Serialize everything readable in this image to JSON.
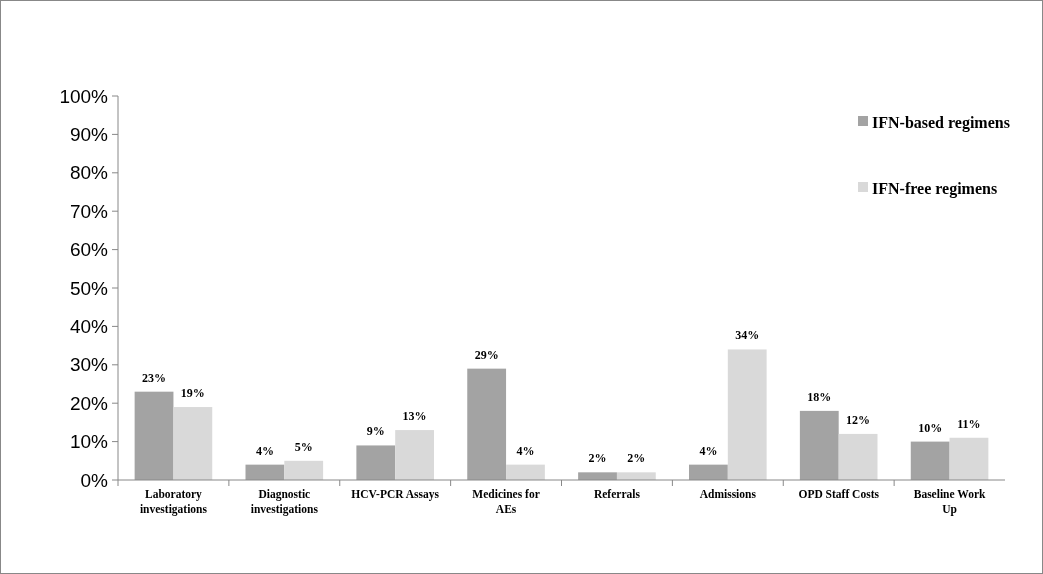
{
  "chart_data": {
    "type": "bar",
    "categories": [
      "Laboratory investigations",
      "Diagnostic investigations",
      "HCV-PCR Assays",
      "Medicines for AEs",
      "Referrals",
      "Admissions",
      "OPD Staff Costs",
      "Baseline Work Up"
    ],
    "series": [
      {
        "name": "IFN-based regimens",
        "color": "#a3a3a3",
        "values": [
          23,
          4,
          9,
          29,
          2,
          4,
          18,
          10
        ],
        "value_labels": [
          "23%",
          "4%",
          "9%",
          "29%",
          "2%",
          "4%",
          "18%",
          "10%"
        ]
      },
      {
        "name": "IFN-free regimens",
        "color": "#d9d9d9",
        "values": [
          19,
          5,
          13,
          4,
          2,
          34,
          12,
          11
        ],
        "value_labels": [
          "19%",
          "5%",
          "13%",
          "4%",
          "2%",
          "34%",
          "12%",
          "11%"
        ]
      }
    ],
    "ylim": [
      0,
      100
    ],
    "yticks": [
      {
        "value": 0,
        "label": "0%"
      },
      {
        "value": 10,
        "label": "10%"
      },
      {
        "value": 20,
        "label": "20%"
      },
      {
        "value": 30,
        "label": "30%"
      },
      {
        "value": 40,
        "label": "40%"
      },
      {
        "value": 50,
        "label": "50%"
      },
      {
        "value": 60,
        "label": "60%"
      },
      {
        "value": 70,
        "label": "70%"
      },
      {
        "value": 80,
        "label": "80%"
      },
      {
        "value": 90,
        "label": "90%"
      },
      {
        "value": 100,
        "label": "100%"
      }
    ],
    "grid": false,
    "legend": "top right"
  }
}
